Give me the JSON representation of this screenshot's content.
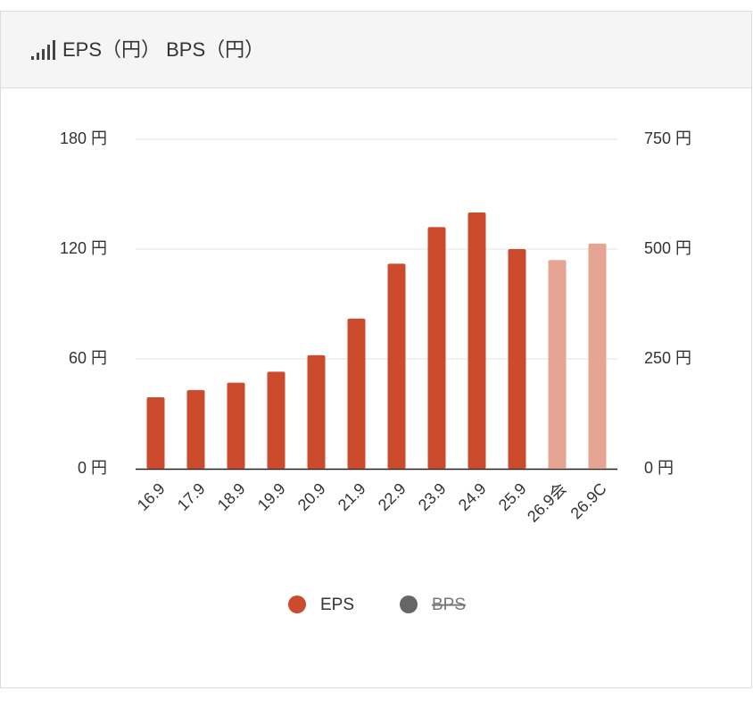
{
  "chart_data": {
    "type": "bar",
    "title": "EPS（円） BPS（円）",
    "categories": [
      "16.9",
      "17.9",
      "18.9",
      "19.9",
      "20.9",
      "21.9",
      "22.9",
      "23.9",
      "24.9",
      "25.9",
      "26.9会",
      "26.9C"
    ],
    "series": [
      {
        "name": "EPS",
        "color": "#cc4b2c",
        "colors": [
          "#cc4b2c",
          "#cc4b2c",
          "#cc4b2c",
          "#cc4b2c",
          "#cc4b2c",
          "#cc4b2c",
          "#cc4b2c",
          "#cc4b2c",
          "#cc4b2c",
          "#cc4b2c",
          "#e6a493",
          "#e6a493"
        ],
        "values": [
          39,
          43,
          47,
          53,
          62,
          82,
          112,
          132,
          140,
          120,
          114,
          123
        ]
      },
      {
        "name": "BPS",
        "color": "#666666",
        "axis": "y2",
        "hidden": true,
        "values": [
          null,
          null,
          null,
          null,
          null,
          null,
          null,
          null,
          null,
          null,
          null,
          null
        ]
      }
    ],
    "ylim": [
      0,
      180
    ],
    "yticks": [
      {
        "value": 0,
        "label": "0 円"
      },
      {
        "value": 60,
        "label": "60 円"
      },
      {
        "value": 120,
        "label": "120 円"
      },
      {
        "value": 180,
        "label": "180 円"
      }
    ],
    "y2lim": [
      0,
      750
    ],
    "y2ticks": [
      {
        "value": 0,
        "label": "0 円"
      },
      {
        "value": 250,
        "label": "250 円"
      },
      {
        "value": 500,
        "label": "500 円"
      },
      {
        "value": 750,
        "label": "750 円"
      }
    ],
    "grid": true,
    "legend": "bottom"
  }
}
